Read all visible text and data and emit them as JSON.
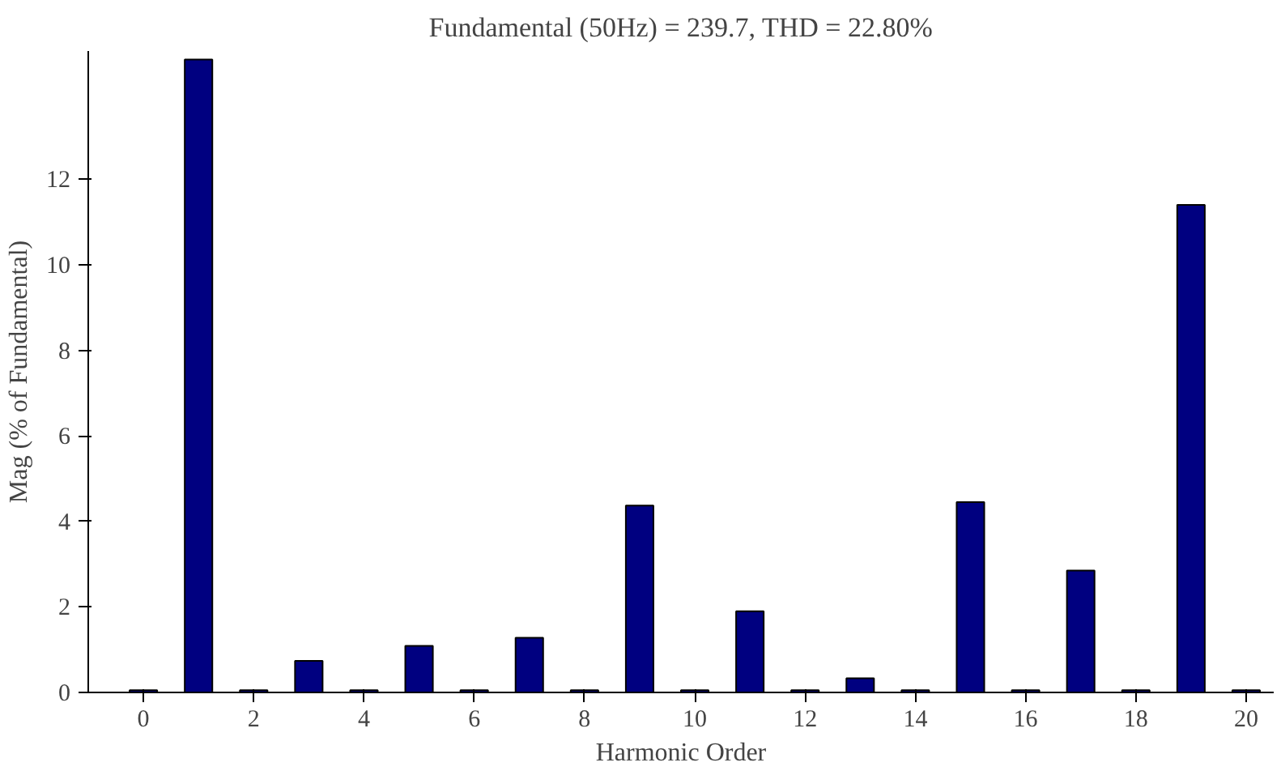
{
  "chart_data": {
    "type": "bar",
    "title": "Fundamental (50Hz) = 239.7, THD = 22.80%",
    "xlabel": "Harmonic Order",
    "ylabel": "Mag (% of Fundamental)",
    "x": [
      0,
      1,
      2,
      3,
      4,
      5,
      6,
      7,
      8,
      9,
      10,
      11,
      12,
      13,
      14,
      15,
      16,
      17,
      18,
      19,
      20
    ],
    "values": [
      0.05,
      14.8,
      0.05,
      0.74,
      0.05,
      1.09,
      0.05,
      1.28,
      0.05,
      4.37,
      0.05,
      1.9,
      0.05,
      0.33,
      0.05,
      4.45,
      0.05,
      2.85,
      0.05,
      11.4,
      0.05
    ],
    "color": "#000080",
    "xlim": [
      -1,
      20.5
    ],
    "ylim": [
      0,
      15
    ],
    "xticks": [
      0,
      2,
      4,
      6,
      8,
      10,
      12,
      14,
      16,
      18,
      20
    ],
    "yticks": [
      0,
      2,
      4,
      6,
      8,
      10,
      12
    ],
    "grid": false
  }
}
